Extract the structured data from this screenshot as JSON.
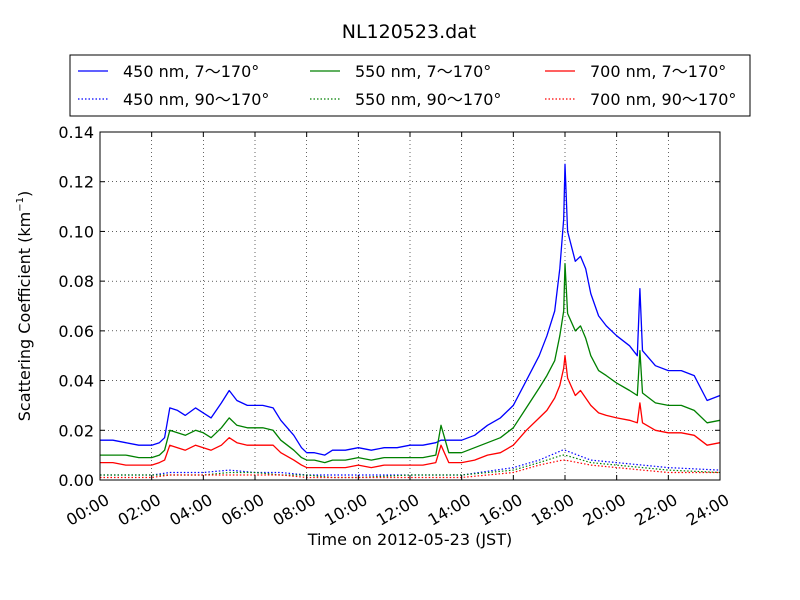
{
  "chart_data": {
    "type": "line",
    "title": "NL120523.dat",
    "xlabel": "Time on 2012-05-23 (JST)",
    "ylabel_main": "Scattering Coefficient (km",
    "ylabel_sup": "−1",
    "ylabel_end": ")",
    "xlim": [
      0,
      24
    ],
    "ylim": [
      0,
      0.14
    ],
    "grid": true,
    "legend_position": "top, above plot",
    "x_tick_labels": [
      "00:00",
      "02:00",
      "04:00",
      "06:00",
      "08:00",
      "10:00",
      "12:00",
      "14:00",
      "16:00",
      "18:00",
      "20:00",
      "22:00",
      "24:00"
    ],
    "y_tick_labels": [
      "0.00",
      "0.02",
      "0.04",
      "0.06",
      "0.08",
      "0.10",
      "0.12",
      "0.14"
    ],
    "x_unit": "hours",
    "series": [
      {
        "name": "450 nm, 7～170°",
        "color": "#0000ff",
        "style": "solid",
        "x": [
          0,
          0.5,
          1,
          1.5,
          2,
          2.3,
          2.5,
          2.7,
          3,
          3.3,
          3.7,
          4,
          4.3,
          4.7,
          5,
          5.3,
          5.7,
          6,
          6.3,
          6.7,
          7,
          7.5,
          7.8,
          8,
          8.3,
          8.7,
          9,
          9.5,
          10,
          10.5,
          11,
          11.5,
          12,
          12.5,
          13,
          13.2,
          13.5,
          14,
          14.5,
          15,
          15.5,
          16,
          16.5,
          17,
          17.3,
          17.6,
          17.8,
          17.95,
          18,
          18.1,
          18.4,
          18.6,
          18.8,
          19,
          19.3,
          19.6,
          20,
          20.5,
          20.8,
          20.9,
          21,
          21.5,
          22,
          22.5,
          23,
          23.5,
          24
        ],
        "y": [
          0.016,
          0.016,
          0.015,
          0.014,
          0.014,
          0.015,
          0.017,
          0.029,
          0.028,
          0.026,
          0.029,
          0.027,
          0.025,
          0.031,
          0.036,
          0.032,
          0.03,
          0.03,
          0.03,
          0.029,
          0.024,
          0.018,
          0.013,
          0.011,
          0.011,
          0.01,
          0.012,
          0.012,
          0.013,
          0.012,
          0.013,
          0.013,
          0.014,
          0.014,
          0.015,
          0.016,
          0.016,
          0.016,
          0.018,
          0.022,
          0.025,
          0.03,
          0.04,
          0.05,
          0.058,
          0.068,
          0.085,
          0.105,
          0.127,
          0.1,
          0.088,
          0.09,
          0.085,
          0.075,
          0.066,
          0.062,
          0.058,
          0.054,
          0.05,
          0.077,
          0.052,
          0.046,
          0.044,
          0.044,
          0.042,
          0.032,
          0.034
        ]
      },
      {
        "name": "550 nm, 7～170°",
        "color": "#008000",
        "style": "solid",
        "x": [
          0,
          0.5,
          1,
          1.5,
          2,
          2.3,
          2.5,
          2.7,
          3,
          3.3,
          3.7,
          4,
          4.3,
          4.7,
          5,
          5.3,
          5.7,
          6,
          6.3,
          6.7,
          7,
          7.5,
          7.8,
          8,
          8.3,
          8.7,
          9,
          9.5,
          10,
          10.5,
          11,
          11.5,
          12,
          12.5,
          13,
          13.2,
          13.5,
          14,
          14.5,
          15,
          15.5,
          16,
          16.5,
          17,
          17.3,
          17.6,
          17.8,
          17.95,
          18,
          18.1,
          18.4,
          18.6,
          18.8,
          19,
          19.3,
          19.6,
          20,
          20.5,
          20.8,
          20.9,
          21,
          21.5,
          22,
          22.5,
          23,
          23.5,
          24
        ],
        "y": [
          0.01,
          0.01,
          0.01,
          0.009,
          0.009,
          0.01,
          0.012,
          0.02,
          0.019,
          0.018,
          0.02,
          0.019,
          0.017,
          0.021,
          0.025,
          0.022,
          0.021,
          0.021,
          0.021,
          0.02,
          0.016,
          0.012,
          0.009,
          0.008,
          0.008,
          0.007,
          0.008,
          0.008,
          0.009,
          0.008,
          0.009,
          0.009,
          0.009,
          0.009,
          0.01,
          0.022,
          0.011,
          0.011,
          0.013,
          0.015,
          0.017,
          0.021,
          0.029,
          0.037,
          0.042,
          0.048,
          0.058,
          0.068,
          0.087,
          0.067,
          0.06,
          0.062,
          0.057,
          0.05,
          0.044,
          0.042,
          0.039,
          0.036,
          0.034,
          0.052,
          0.035,
          0.031,
          0.03,
          0.03,
          0.028,
          0.023,
          0.024
        ]
      },
      {
        "name": "700 nm, 7～170°",
        "color": "#ff0000",
        "style": "solid",
        "x": [
          0,
          0.5,
          1,
          1.5,
          2,
          2.3,
          2.5,
          2.7,
          3,
          3.3,
          3.7,
          4,
          4.3,
          4.7,
          5,
          5.3,
          5.7,
          6,
          6.3,
          6.7,
          7,
          7.5,
          7.8,
          8,
          8.3,
          8.7,
          9,
          9.5,
          10,
          10.5,
          11,
          11.5,
          12,
          12.5,
          13,
          13.2,
          13.5,
          14,
          14.5,
          15,
          15.5,
          16,
          16.5,
          17,
          17.3,
          17.6,
          17.8,
          17.95,
          18,
          18.1,
          18.4,
          18.6,
          18.8,
          19,
          19.3,
          19.6,
          20,
          20.5,
          20.8,
          20.9,
          21,
          21.5,
          22,
          22.5,
          23,
          23.5,
          24
        ],
        "y": [
          0.007,
          0.007,
          0.006,
          0.006,
          0.006,
          0.007,
          0.008,
          0.014,
          0.013,
          0.012,
          0.014,
          0.013,
          0.012,
          0.014,
          0.017,
          0.015,
          0.014,
          0.014,
          0.014,
          0.014,
          0.011,
          0.008,
          0.006,
          0.005,
          0.005,
          0.005,
          0.005,
          0.005,
          0.006,
          0.005,
          0.006,
          0.006,
          0.006,
          0.006,
          0.007,
          0.014,
          0.007,
          0.007,
          0.008,
          0.01,
          0.011,
          0.014,
          0.02,
          0.025,
          0.028,
          0.033,
          0.038,
          0.045,
          0.05,
          0.041,
          0.034,
          0.036,
          0.033,
          0.03,
          0.027,
          0.026,
          0.025,
          0.024,
          0.023,
          0.031,
          0.023,
          0.02,
          0.019,
          0.019,
          0.018,
          0.014,
          0.015
        ]
      },
      {
        "name": "450 nm, 90～170°",
        "color": "#0000ff",
        "style": "dotted",
        "x": [
          0,
          2,
          2.7,
          4,
          5,
          6,
          7,
          8,
          9,
          10,
          12,
          14,
          16,
          17,
          17.9,
          18,
          19,
          20,
          21,
          22,
          24
        ],
        "y": [
          0.002,
          0.002,
          0.003,
          0.003,
          0.004,
          0.003,
          0.003,
          0.002,
          0.002,
          0.002,
          0.002,
          0.002,
          0.005,
          0.008,
          0.012,
          0.012,
          0.008,
          0.007,
          0.006,
          0.005,
          0.004
        ]
      },
      {
        "name": "550 nm, 90～170°",
        "color": "#008000",
        "style": "dotted",
        "x": [
          0,
          2,
          2.7,
          4,
          5,
          6,
          7,
          8,
          9,
          10,
          12,
          14,
          16,
          17,
          17.9,
          18,
          19,
          20,
          21,
          22,
          24
        ],
        "y": [
          0.002,
          0.002,
          0.002,
          0.002,
          0.003,
          0.003,
          0.002,
          0.002,
          0.001,
          0.001,
          0.002,
          0.002,
          0.004,
          0.007,
          0.01,
          0.01,
          0.007,
          0.006,
          0.005,
          0.004,
          0.003
        ]
      },
      {
        "name": "700 nm, 90～170°",
        "color": "#ff0000",
        "style": "dotted",
        "x": [
          0,
          2,
          2.7,
          4,
          5,
          6,
          7,
          8,
          9,
          10,
          12,
          14,
          16,
          17,
          17.9,
          18,
          19,
          20,
          21,
          22,
          24
        ],
        "y": [
          0.001,
          0.001,
          0.002,
          0.002,
          0.002,
          0.002,
          0.002,
          0.001,
          0.001,
          0.001,
          0.001,
          0.001,
          0.003,
          0.006,
          0.008,
          0.008,
          0.006,
          0.005,
          0.004,
          0.003,
          0.003
        ]
      }
    ]
  }
}
